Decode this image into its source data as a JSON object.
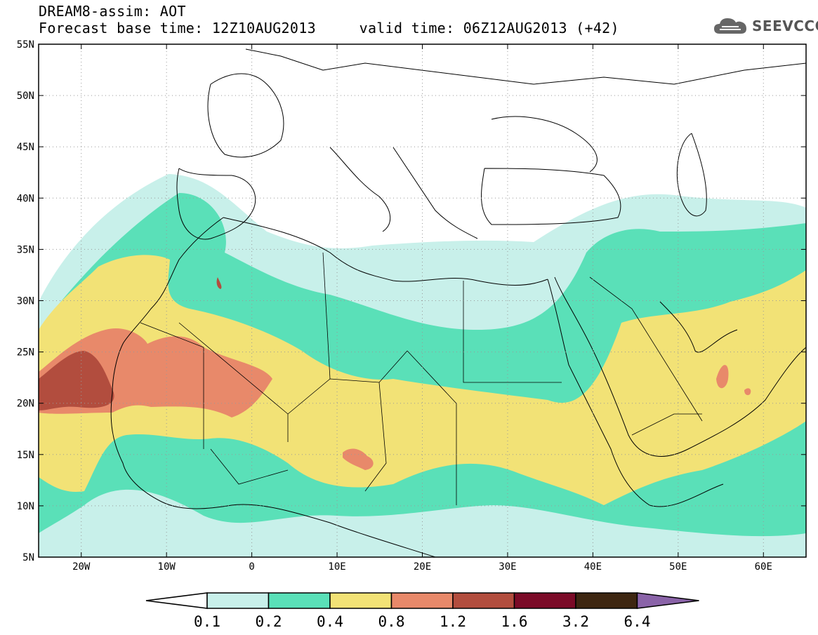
{
  "header": {
    "title_line1": "DREAM8-assim: AOT",
    "title_line2": "Forecast base time: 12Z10AUG2013     valid time: 06Z12AUG2013 (+42)",
    "logo_text": "SEEVCCC"
  },
  "map": {
    "lon_range": [
      -25,
      65
    ],
    "lat_range": [
      5,
      55
    ],
    "lat_ticks": [
      {
        "value": 55,
        "label": "55N"
      },
      {
        "value": 50,
        "label": "50N"
      },
      {
        "value": 45,
        "label": "45N"
      },
      {
        "value": 40,
        "label": "40N"
      },
      {
        "value": 35,
        "label": "35N"
      },
      {
        "value": 30,
        "label": "30N"
      },
      {
        "value": 25,
        "label": "25N"
      },
      {
        "value": 20,
        "label": "20N"
      },
      {
        "value": 15,
        "label": "15N"
      },
      {
        "value": 10,
        "label": "10N"
      },
      {
        "value": 5,
        "label": "5N"
      }
    ],
    "lon_ticks": [
      {
        "value": -20,
        "label": "20W"
      },
      {
        "value": -10,
        "label": "10W"
      },
      {
        "value": 0,
        "label": "0"
      },
      {
        "value": 10,
        "label": "10E"
      },
      {
        "value": 20,
        "label": "20E"
      },
      {
        "value": 30,
        "label": "30E"
      },
      {
        "value": 40,
        "label": "40E"
      },
      {
        "value": 50,
        "label": "50E"
      },
      {
        "value": 60,
        "label": "60E"
      }
    ],
    "grid": "dotted"
  },
  "colorbar": {
    "labels": [
      "0.1",
      "0.2",
      "0.4",
      "0.8",
      "1.2",
      "1.6",
      "3.2",
      "6.4"
    ],
    "colors": [
      "#c8f0ea",
      "#5ae0b8",
      "#f2e276",
      "#e8896a",
      "#b24d3e",
      "#7b0a27",
      "#3e2611",
      "#8a63a8"
    ],
    "low_color": "#ffffff"
  }
}
